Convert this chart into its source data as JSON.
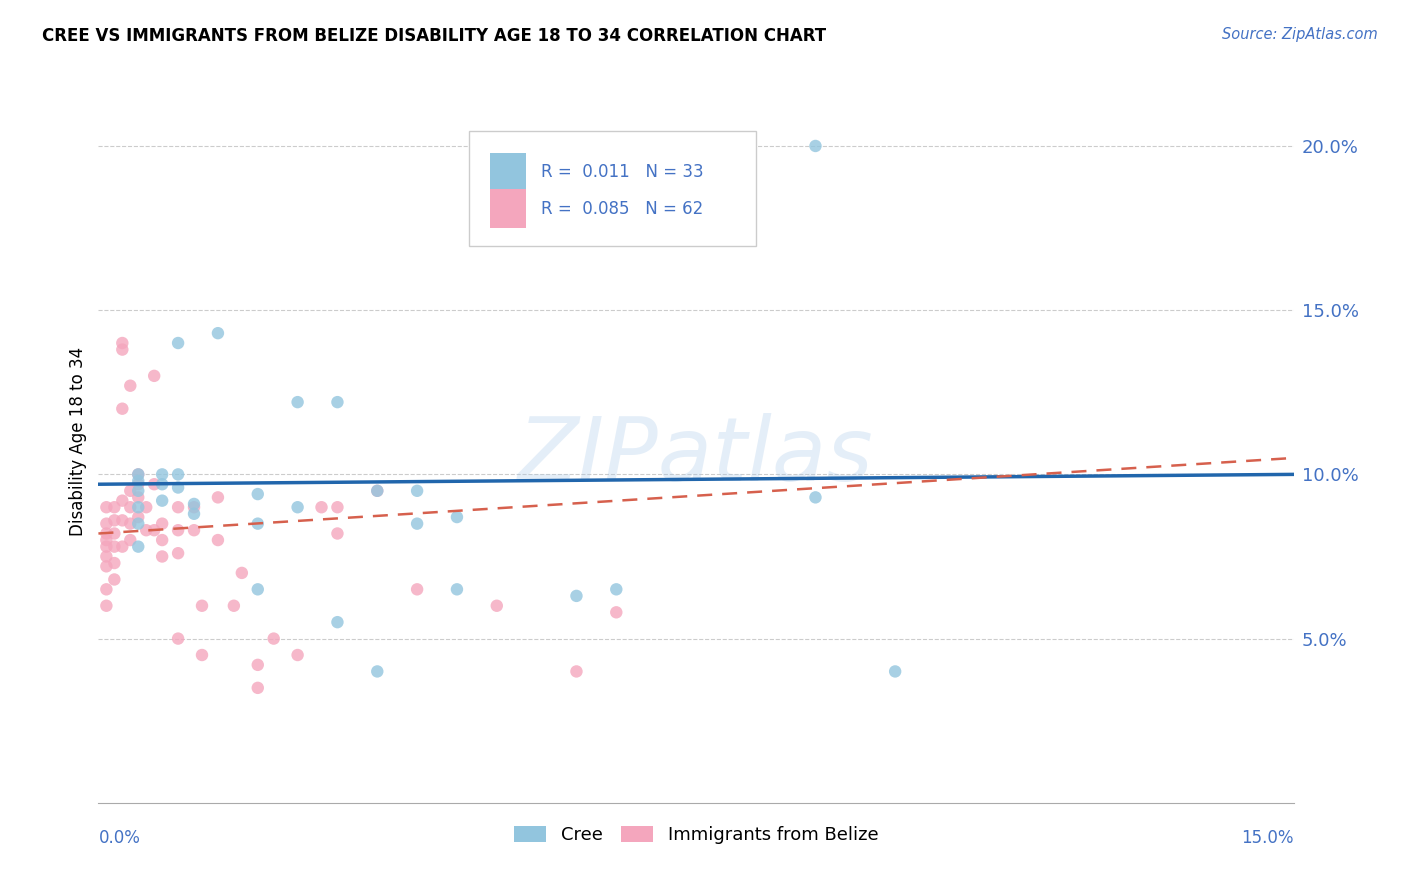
{
  "title": "CREE VS IMMIGRANTS FROM BELIZE DISABILITY AGE 18 TO 34 CORRELATION CHART",
  "source": "Source: ZipAtlas.com",
  "ylabel": "Disability Age 18 to 34",
  "xlim": [
    0.0,
    0.15
  ],
  "ylim": [
    0.0,
    0.22
  ],
  "yticks": [
    0.05,
    0.1,
    0.15,
    0.2
  ],
  "ytick_labels": [
    "5.0%",
    "10.0%",
    "15.0%",
    "20.0%"
  ],
  "legend_cree_r": "0.011",
  "legend_cree_n": "33",
  "legend_belize_r": "0.085",
  "legend_belize_n": "62",
  "cree_color": "#92c5de",
  "belize_color": "#f4a6bd",
  "cree_line_color": "#2166ac",
  "belize_line_color": "#d6604d",
  "watermark": "ZIPatlas",
  "cree_scatter_x": [
    0.005,
    0.005,
    0.005,
    0.005,
    0.005,
    0.005,
    0.008,
    0.008,
    0.008,
    0.01,
    0.01,
    0.01,
    0.012,
    0.012,
    0.015,
    0.02,
    0.02,
    0.02,
    0.025,
    0.025,
    0.03,
    0.03,
    0.035,
    0.035,
    0.04,
    0.04,
    0.045,
    0.045,
    0.06,
    0.065,
    0.09,
    0.09,
    0.1
  ],
  "cree_scatter_y": [
    0.095,
    0.1,
    0.098,
    0.085,
    0.078,
    0.09,
    0.1,
    0.097,
    0.092,
    0.14,
    0.1,
    0.096,
    0.091,
    0.088,
    0.143,
    0.094,
    0.085,
    0.065,
    0.122,
    0.09,
    0.122,
    0.055,
    0.095,
    0.04,
    0.095,
    0.085,
    0.087,
    0.065,
    0.063,
    0.065,
    0.093,
    0.2,
    0.04
  ],
  "belize_scatter_x": [
    0.001,
    0.001,
    0.001,
    0.001,
    0.001,
    0.001,
    0.001,
    0.001,
    0.001,
    0.002,
    0.002,
    0.002,
    0.002,
    0.002,
    0.002,
    0.003,
    0.003,
    0.003,
    0.003,
    0.003,
    0.003,
    0.004,
    0.004,
    0.004,
    0.004,
    0.004,
    0.005,
    0.005,
    0.005,
    0.005,
    0.006,
    0.006,
    0.007,
    0.007,
    0.007,
    0.008,
    0.008,
    0.008,
    0.01,
    0.01,
    0.01,
    0.01,
    0.012,
    0.012,
    0.013,
    0.013,
    0.015,
    0.015,
    0.017,
    0.018,
    0.02,
    0.02,
    0.022,
    0.025,
    0.028,
    0.03,
    0.03,
    0.035,
    0.04,
    0.05,
    0.06,
    0.065
  ],
  "belize_scatter_y": [
    0.085,
    0.082,
    0.08,
    0.078,
    0.075,
    0.072,
    0.09,
    0.065,
    0.06,
    0.09,
    0.086,
    0.082,
    0.078,
    0.073,
    0.068,
    0.14,
    0.138,
    0.12,
    0.092,
    0.086,
    0.078,
    0.127,
    0.095,
    0.09,
    0.085,
    0.08,
    0.1,
    0.097,
    0.093,
    0.087,
    0.09,
    0.083,
    0.13,
    0.097,
    0.083,
    0.085,
    0.08,
    0.075,
    0.09,
    0.083,
    0.076,
    0.05,
    0.09,
    0.083,
    0.06,
    0.045,
    0.093,
    0.08,
    0.06,
    0.07,
    0.042,
    0.035,
    0.05,
    0.045,
    0.09,
    0.09,
    0.082,
    0.095,
    0.065,
    0.06,
    0.04,
    0.058
  ],
  "cree_trend_x": [
    0.0,
    0.15
  ],
  "cree_trend_y": [
    0.097,
    0.1
  ],
  "belize_trend_x": [
    0.0,
    0.15
  ],
  "belize_trend_y": [
    0.082,
    0.105
  ]
}
